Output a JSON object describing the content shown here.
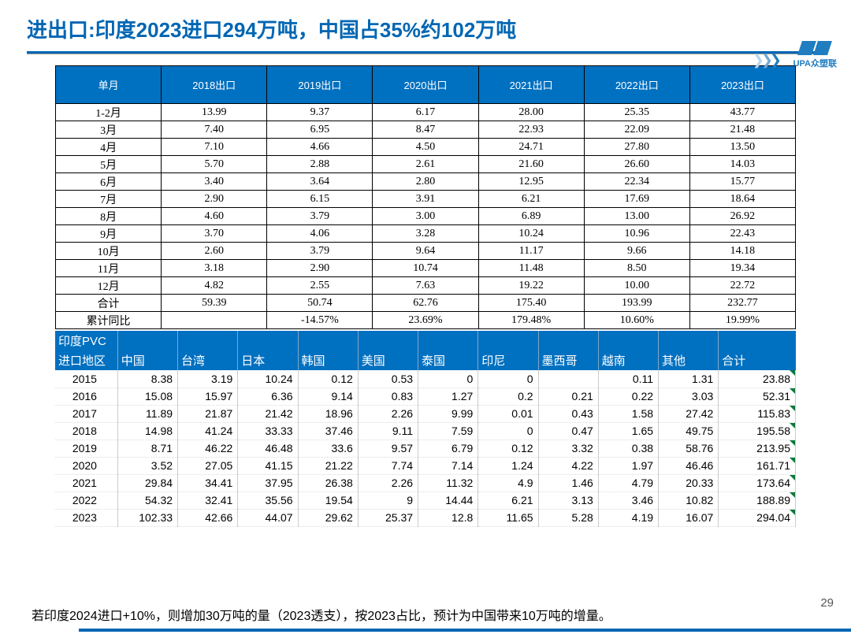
{
  "title": "进出口:印度2023进口294万吨，中国占35%约102万吨",
  "logo_text": "UPA众塑联",
  "page_number": "29",
  "footnote": "若印度2024进口+10%，则增加30万吨的量（2023透支），按2023占比，预计为中国带来10万吨的增量。",
  "table1": {
    "header_first": "单月",
    "year_headers": [
      "2018出口",
      "2019出口",
      "2020出口",
      "2021出口",
      "2022出口",
      "2023出口"
    ],
    "rows": [
      {
        "m": "1-2月",
        "v": [
          "13.99",
          "9.37",
          "6.17",
          "28.00",
          "25.35",
          "43.77"
        ]
      },
      {
        "m": "3月",
        "v": [
          "7.40",
          "6.95",
          "8.47",
          "22.93",
          "22.09",
          "21.48"
        ]
      },
      {
        "m": "4月",
        "v": [
          "7.10",
          "4.66",
          "4.50",
          "24.71",
          "27.80",
          "13.50"
        ]
      },
      {
        "m": "5月",
        "v": [
          "5.70",
          "2.88",
          "2.61",
          "21.60",
          "26.60",
          "14.03"
        ]
      },
      {
        "m": "6月",
        "v": [
          "3.40",
          "3.64",
          "2.80",
          "12.95",
          "22.34",
          "15.77"
        ]
      },
      {
        "m": "7月",
        "v": [
          "2.90",
          "6.15",
          "3.91",
          "6.21",
          "17.69",
          "18.64"
        ]
      },
      {
        "m": "8月",
        "v": [
          "4.60",
          "3.79",
          "3.00",
          "6.89",
          "13.00",
          "26.92"
        ]
      },
      {
        "m": "9月",
        "v": [
          "3.70",
          "4.06",
          "3.28",
          "10.24",
          "10.96",
          "22.43"
        ]
      },
      {
        "m": "10月",
        "v": [
          "2.60",
          "3.79",
          "9.64",
          "11.17",
          "9.66",
          "14.18"
        ]
      },
      {
        "m": "11月",
        "v": [
          "3.18",
          "2.90",
          "10.74",
          "11.48",
          "8.50",
          "19.34"
        ]
      },
      {
        "m": "12月",
        "v": [
          "4.82",
          "2.55",
          "7.63",
          "19.22",
          "10.00",
          "22.72"
        ]
      },
      {
        "m": "合计",
        "v": [
          "59.39",
          "50.74",
          "62.76",
          "175.40",
          "193.99",
          "232.77"
        ]
      },
      {
        "m": "累计同比",
        "v": [
          "",
          "-14.57%",
          "23.69%",
          "179.48%",
          "10.60%",
          "19.99%"
        ]
      }
    ]
  },
  "table2": {
    "corner_line1": "印度PVC",
    "corner_line2": "进口地区",
    "region_headers": [
      "中国",
      "台湾",
      "日本",
      "韩国",
      "美国",
      "泰国",
      "印尼",
      "墨西哥",
      "越南",
      "其他",
      "合计"
    ],
    "rows": [
      {
        "y": "2015",
        "v": [
          "8.38",
          "3.19",
          "10.24",
          "0.12",
          "0.53",
          "0",
          "0",
          "",
          "0.11",
          "1.31",
          "23.88"
        ]
      },
      {
        "y": "2016",
        "v": [
          "15.08",
          "15.97",
          "6.36",
          "9.14",
          "0.83",
          "1.27",
          "0.2",
          "0.21",
          "0.22",
          "3.03",
          "52.31"
        ]
      },
      {
        "y": "2017",
        "v": [
          "11.89",
          "21.87",
          "21.42",
          "18.96",
          "2.26",
          "9.99",
          "0.01",
          "0.43",
          "1.58",
          "27.42",
          "115.83"
        ]
      },
      {
        "y": "2018",
        "v": [
          "14.98",
          "41.24",
          "33.33",
          "37.46",
          "9.11",
          "7.59",
          "0",
          "0.47",
          "1.65",
          "49.75",
          "195.58"
        ]
      },
      {
        "y": "2019",
        "v": [
          "8.71",
          "46.22",
          "46.48",
          "33.6",
          "9.57",
          "6.79",
          "0.12",
          "3.32",
          "0.38",
          "58.76",
          "213.95"
        ]
      },
      {
        "y": "2020",
        "v": [
          "3.52",
          "27.05",
          "41.15",
          "21.22",
          "7.74",
          "7.14",
          "1.24",
          "4.22",
          "1.97",
          "46.46",
          "161.71"
        ]
      },
      {
        "y": "2021",
        "v": [
          "29.84",
          "34.41",
          "37.95",
          "26.38",
          "2.26",
          "11.32",
          "4.9",
          "1.46",
          "4.79",
          "20.33",
          "173.64"
        ]
      },
      {
        "y": "2022",
        "v": [
          "54.32",
          "32.41",
          "35.56",
          "19.54",
          "9",
          "14.44",
          "6.21",
          "3.13",
          "3.46",
          "10.82",
          "188.89"
        ]
      },
      {
        "y": "2023",
        "v": [
          "102.33",
          "42.66",
          "44.07",
          "29.62",
          "25.37",
          "12.8",
          "11.65",
          "5.28",
          "4.19",
          "16.07",
          "294.04"
        ]
      }
    ]
  }
}
